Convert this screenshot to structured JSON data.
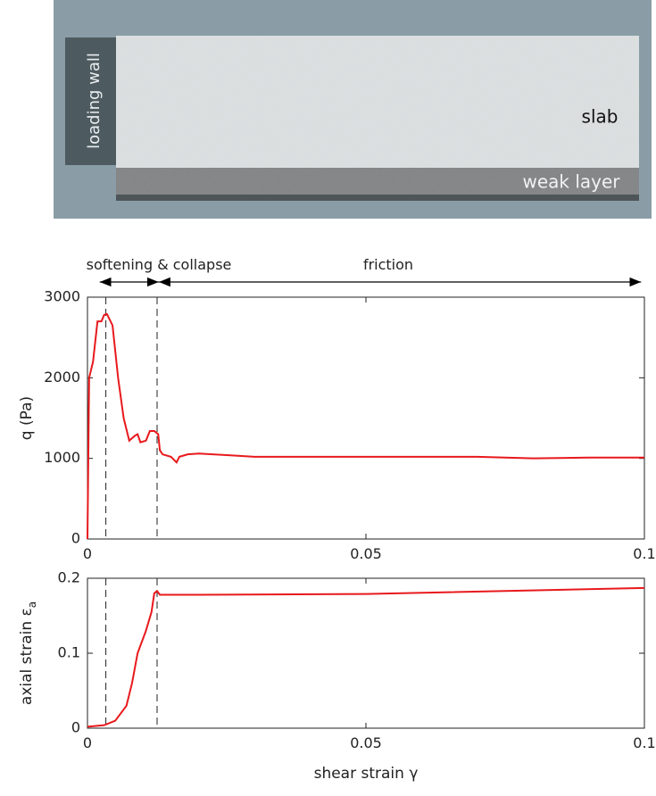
{
  "image": {
    "labels": {
      "wall": "loading wall",
      "slab": "slab",
      "weak": "weak layer"
    }
  },
  "chart_data": [
    {
      "type": "line",
      "ylabel": "q (Pa)",
      "xlim": [
        0,
        0.1
      ],
      "xticks": [
        0,
        0.05,
        0.1
      ],
      "ylim": [
        0,
        3000
      ],
      "yticks": [
        0,
        1000,
        2000,
        3000
      ],
      "vlines": [
        0.0033,
        0.0125
      ],
      "annotations": [
        {
          "text": "softening & collapse",
          "xrange": [
            0.0022,
            0.0128
          ]
        },
        {
          "text": "friction",
          "xrange": [
            0.0128,
            0.0994
          ]
        }
      ],
      "x": [
        0,
        0.0003,
        0.001,
        0.0018,
        0.0025,
        0.003,
        0.0035,
        0.0045,
        0.0055,
        0.0065,
        0.0075,
        0.0085,
        0.009,
        0.0095,
        0.0105,
        0.0112,
        0.012,
        0.0127,
        0.013,
        0.0135,
        0.015,
        0.016,
        0.0165,
        0.018,
        0.02,
        0.025,
        0.03,
        0.04,
        0.05,
        0.06,
        0.07,
        0.08,
        0.09,
        0.1
      ],
      "series": [
        {
          "color": "#e8191c",
          "values": [
            0,
            2000,
            2200,
            2700,
            2700,
            2780,
            2790,
            2650,
            2000,
            1500,
            1220,
            1280,
            1300,
            1200,
            1220,
            1340,
            1340,
            1300,
            1100,
            1050,
            1020,
            950,
            1020,
            1050,
            1060,
            1040,
            1020,
            1020,
            1020,
            1020,
            1020,
            1000,
            1010,
            1010
          ]
        }
      ]
    },
    {
      "type": "line",
      "ylabel": "axial strain ε",
      "ylabel_subscript": "a",
      "xlabel": "shear strain γ",
      "xlim": [
        0,
        0.1
      ],
      "xticks": [
        0,
        0.05,
        0.1
      ],
      "ylim": [
        0,
        0.2
      ],
      "yticks": [
        0,
        0.1,
        0.2
      ],
      "vlines": [
        0.0033,
        0.0125
      ],
      "x": [
        0,
        0.003,
        0.005,
        0.007,
        0.008,
        0.009,
        0.0105,
        0.0115,
        0.012,
        0.0125,
        0.013,
        0.02,
        0.05,
        0.1
      ],
      "series": [
        {
          "color": "#e8191c",
          "values": [
            0.002,
            0.004,
            0.01,
            0.03,
            0.06,
            0.1,
            0.13,
            0.155,
            0.18,
            0.183,
            0.178,
            0.178,
            0.179,
            0.187
          ]
        }
      ]
    }
  ]
}
